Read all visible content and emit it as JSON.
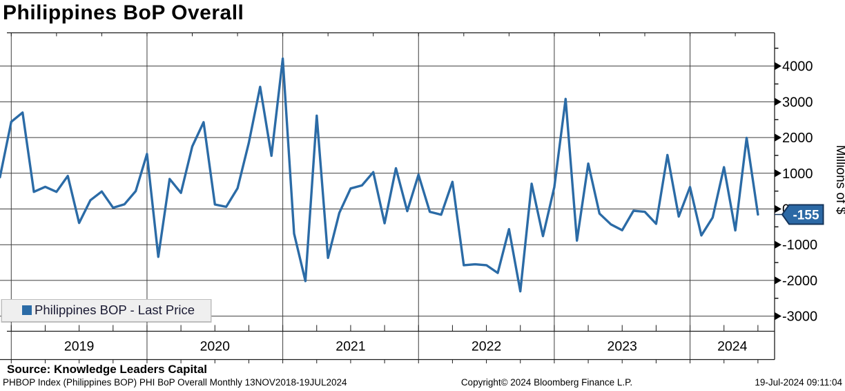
{
  "title": "Philippines BoP Overall",
  "legend": {
    "label": "Philippines BOP - Last Price"
  },
  "y_axis": {
    "label": "Millions of $",
    "ticks": [
      4000,
      3000,
      2000,
      1000,
      0,
      -1000,
      -2000,
      -3000
    ],
    "minor_step": 500
  },
  "x_axis": {
    "years": [
      "2019",
      "2020",
      "2021",
      "2022",
      "2023",
      "2024"
    ]
  },
  "last_price": {
    "value": "-155"
  },
  "footer": {
    "source": "Source: Knowledge Leaders Capital",
    "description": "PHBOP Index (Philippines BOP) PHI BoP Overall  Monthly 13NOV2018-19JUL2024",
    "copyright": "Copyright© 2024 Bloomberg Finance L.P.",
    "timestamp": "19-Jul-2024 09:11:04"
  },
  "colors": {
    "line": "#2b6ba6",
    "badge_fill": "#2c69a5",
    "badge_border": "#15345a",
    "grid": "#3d3d3d",
    "border": "#1b1b1b",
    "legend_bg": "#efefef"
  },
  "chart_data": {
    "type": "line",
    "title": "Philippines BoP Overall",
    "ylabel": "Millions of $",
    "xlabel": "",
    "ylim": [
      -3430,
      4930
    ],
    "xlim": [
      "2018-11",
      "2024-07"
    ],
    "grid": true,
    "legend_position": "bottom-left",
    "last_price": -155,
    "series": [
      {
        "name": "Philippines BOP - Last Price",
        "x": [
          "2018-11",
          "2018-12",
          "2019-01",
          "2019-02",
          "2019-03",
          "2019-04",
          "2019-05",
          "2019-06",
          "2019-07",
          "2019-08",
          "2019-09",
          "2019-10",
          "2019-11",
          "2019-12",
          "2020-01",
          "2020-02",
          "2020-03",
          "2020-04",
          "2020-05",
          "2020-06",
          "2020-07",
          "2020-08",
          "2020-09",
          "2020-10",
          "2020-11",
          "2020-12",
          "2021-01",
          "2021-02",
          "2021-03",
          "2021-04",
          "2021-05",
          "2021-06",
          "2021-07",
          "2021-08",
          "2021-09",
          "2021-10",
          "2021-11",
          "2021-12",
          "2022-01",
          "2022-02",
          "2022-03",
          "2022-04",
          "2022-05",
          "2022-06",
          "2022-07",
          "2022-08",
          "2022-09",
          "2022-10",
          "2022-11",
          "2022-12",
          "2023-01",
          "2023-02",
          "2023-03",
          "2023-04",
          "2023-05",
          "2023-06",
          "2023-07",
          "2023-08",
          "2023-09",
          "2023-10",
          "2023-11",
          "2023-12",
          "2024-01",
          "2024-02",
          "2024-03",
          "2024-04",
          "2024-05",
          "2024-06"
        ],
        "values": [
          890,
          2440,
          2700,
          480,
          620,
          480,
          925,
          -390,
          245,
          490,
          35,
          130,
          500,
          1540,
          -1340,
          840,
          450,
          1750,
          2430,
          125,
          60,
          580,
          1850,
          3420,
          1490,
          4210,
          -690,
          -2020,
          2610,
          -1370,
          -110,
          575,
          660,
          1030,
          -400,
          1140,
          -60,
          960,
          -80,
          -160,
          760,
          -1575,
          -1550,
          -1575,
          -1790,
          -565,
          -2305,
          705,
          -760,
          610,
          3080,
          -885,
          1270,
          -130,
          -430,
          -595,
          -50,
          -80,
          -415,
          1510,
          -210,
          615,
          -740,
          -240,
          1170,
          -600,
          1990,
          -155
        ]
      }
    ]
  }
}
